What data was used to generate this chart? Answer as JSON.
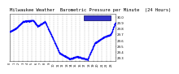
{
  "title": "Milwaukee Weather  Barometric Pressure per Minute  (24 Hours)",
  "bg_color": "#ffffff",
  "plot_bg_color": "#ffffff",
  "dot_color": "#0000ff",
  "dot_size": 0.8,
  "legend_box_color": "#3333cc",
  "legend_edge_color": "#000066",
  "ylim": [
    29.25,
    30.05
  ],
  "ytick_labels": [
    "29.3",
    "29.4",
    "29.5",
    "29.6",
    "29.7",
    "29.8",
    "29.9",
    "30.0"
  ],
  "ytick_values": [
    29.3,
    29.4,
    29.5,
    29.6,
    29.7,
    29.8,
    29.9,
    30.0
  ],
  "num_points": 1440,
  "grid_color": "#bbbbbb",
  "title_fontsize": 4.0,
  "tick_fontsize": 2.8,
  "xtick_fontsize": 2.5
}
